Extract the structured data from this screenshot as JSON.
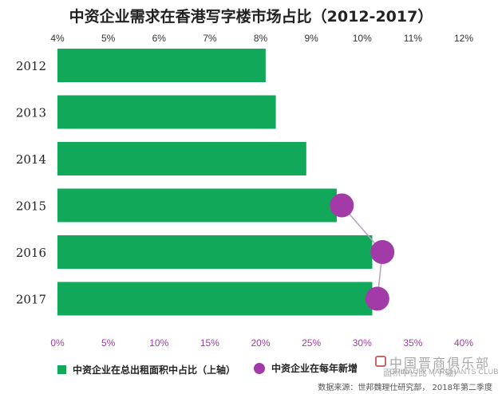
{
  "title": "中资企业需求在香港写字楼市场占比（2012-2017）",
  "legend": {
    "bar_label": "中资企业在总出租面积中占比（上轴）",
    "dot_label": "中资企业在每年新增"
  },
  "watermark": {
    "cn": "中国晋商俱乐部",
    "en": "CHINA JIN MARCHANTS CLUB",
    "overlay": "面积中占比（下轴）"
  },
  "source": "数据来源：世邦魏理仕研究部， 2018年第二季度",
  "colors": {
    "bar": "#12a85a",
    "dot": "#a23aa8",
    "bottom_ticks": "#a23aa8"
  },
  "chart_data": {
    "type": "bar",
    "orientation": "horizontal",
    "categories": [
      "2012",
      "2013",
      "2014",
      "2015",
      "2016",
      "2017"
    ],
    "top_axis": {
      "ticks": [
        "4%",
        "5%",
        "6%",
        "7%",
        "8%",
        "9%",
        "10%",
        "11%",
        "12%"
      ],
      "range": [
        4,
        12
      ]
    },
    "bottom_axis": {
      "ticks": [
        "0%",
        "5%",
        "10%",
        "15%",
        "20%",
        "25%",
        "30%",
        "35%",
        "40%"
      ],
      "range": [
        0,
        40
      ]
    },
    "series": [
      {
        "name": "中资企业在总出租面积中占比（上轴）",
        "type": "bar",
        "axis": "top",
        "values": [
          8.1,
          8.3,
          8.9,
          9.5,
          10.2,
          10.2
        ]
      },
      {
        "name": "中资企业在每年新增面积中占比（下轴）",
        "type": "dot",
        "axis": "bottom",
        "values": [
          null,
          null,
          null,
          28,
          32,
          31.5
        ]
      }
    ],
    "grid": false
  }
}
